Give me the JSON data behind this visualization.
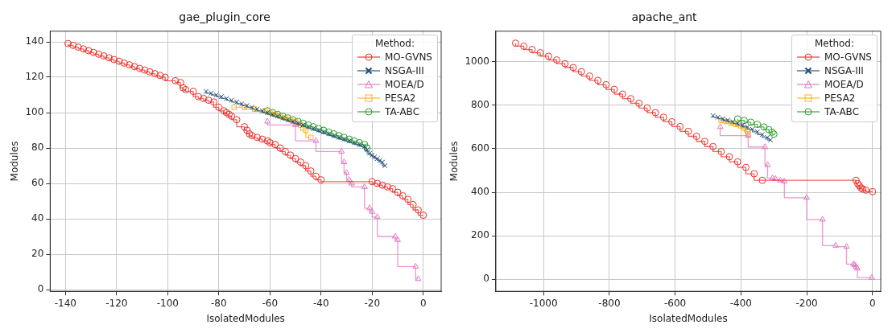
{
  "chart_data": [
    {
      "type": "step",
      "title": "gae_plugin_core",
      "xlabel": "IsolatedModules",
      "ylabel": "Modules",
      "legend_title": "Method:",
      "legend": "top right",
      "grid": true,
      "xlim": [
        -146,
        7
      ],
      "ylim": [
        -1,
        146
      ],
      "xticks": [
        -140,
        -120,
        -100,
        -80,
        -60,
        -40,
        -20,
        0
      ],
      "yticks": [
        0,
        20,
        40,
        60,
        80,
        100,
        120,
        140
      ],
      "series": [
        {
          "name": "MO-GVNS",
          "color": "#e8312a",
          "marker": "circle",
          "x": [
            -139,
            -137,
            -135,
            -133,
            -131,
            -129,
            -127,
            -125,
            -123,
            -121,
            -119,
            -117,
            -115,
            -113,
            -111,
            -109,
            -107,
            -105,
            -103,
            -101,
            -97,
            -95,
            -94,
            -93,
            -90,
            -88,
            -86,
            -84,
            -82,
            -80,
            -78,
            -77,
            -76,
            -75,
            -73,
            -70,
            -69,
            -68,
            -67,
            -65,
            -63,
            -61,
            -60,
            -58,
            -56,
            -54,
            -52,
            -50,
            -48,
            -46,
            -44,
            -42,
            -40,
            -20,
            -18,
            -16,
            -14,
            -12,
            -10,
            -8,
            -6,
            -4,
            -2,
            0
          ],
          "values": [
            139,
            138,
            137,
            136,
            135,
            134,
            133,
            132,
            131,
            130,
            129,
            128,
            127,
            126,
            125,
            124,
            123,
            122,
            121,
            120,
            118,
            117,
            114,
            113,
            112,
            109,
            108,
            107,
            106,
            103,
            101,
            100,
            99,
            98,
            96,
            92,
            90,
            88,
            87,
            86,
            85,
            84,
            83,
            82,
            80,
            78,
            76,
            74,
            72,
            70,
            67,
            64,
            62,
            61,
            60,
            59,
            58,
            57,
            55,
            53,
            51,
            48,
            45,
            42
          ]
        },
        {
          "name": "NSGA-III",
          "color": "#1f4e79",
          "marker": "cross",
          "x": [
            -85,
            -83,
            -81,
            -79,
            -77,
            -75,
            -73,
            -71,
            -69,
            -67,
            -65,
            -63,
            -61,
            -59,
            -57,
            -55,
            -53,
            -51,
            -49,
            -47,
            -45,
            -43,
            -41,
            -39,
            -37,
            -35,
            -33,
            -31,
            -29,
            -27,
            -25,
            -23,
            -22,
            -21,
            -20,
            -19,
            -18,
            -17,
            -16,
            -15
          ],
          "values": [
            112,
            111,
            110,
            109,
            108,
            107,
            106,
            105,
            104,
            103,
            102,
            101,
            100,
            99,
            98,
            97,
            96,
            95,
            94,
            93,
            92,
            91,
            90,
            89,
            88,
            87,
            86,
            85,
            84,
            83,
            82,
            81,
            79,
            77,
            76,
            75,
            74,
            73,
            72,
            70
          ]
        },
        {
          "name": "MOEA/D",
          "color": "#e377c2",
          "marker": "triangle",
          "x": [
            -61,
            -50,
            -42,
            -32,
            -31,
            -30,
            -29,
            -28,
            -23,
            -21,
            -20,
            -18,
            -11,
            -10,
            -3,
            -2
          ],
          "values": [
            95,
            93,
            84,
            78,
            72,
            66,
            62,
            60,
            58,
            46,
            44,
            41,
            30,
            28,
            13,
            6
          ]
        },
        {
          "name": "PESA2",
          "color": "#ffb020",
          "marker": "square",
          "x": [
            -74,
            -70,
            -66,
            -62,
            -60,
            -58,
            -56,
            -54,
            -52,
            -50,
            -48,
            -46,
            -44
          ],
          "values": [
            103,
            103,
            102,
            101,
            100,
            99,
            98,
            97,
            96,
            95,
            93,
            90,
            86
          ]
        },
        {
          "name": "TA-ABC",
          "color": "#2ca02c",
          "marker": "circle",
          "x": [
            -61,
            -59,
            -57,
            -55,
            -53,
            -51,
            -49,
            -47,
            -45,
            -43,
            -41,
            -39,
            -37,
            -35,
            -33,
            -31,
            -29,
            -27,
            -25,
            -23,
            -22
          ],
          "values": [
            101,
            100,
            99,
            98,
            97,
            96,
            95,
            94,
            93,
            92,
            91,
            90,
            89,
            88,
            87,
            86,
            85,
            84,
            83,
            82,
            80
          ]
        }
      ]
    },
    {
      "type": "step",
      "title": "apache_ant",
      "xlabel": "IsolatedModules",
      "ylabel": "Modules",
      "legend_title": "Method:",
      "legend": "top right",
      "grid": true,
      "xlim": [
        -1145,
        25
      ],
      "ylim": [
        -55,
        1140
      ],
      "xticks": [
        -1000,
        -800,
        -600,
        -400,
        -200,
        0
      ],
      "yticks": [
        0,
        200,
        400,
        600,
        800,
        1000
      ],
      "series": [
        {
          "name": "MO-GVNS",
          "color": "#e8312a",
          "marker": "circle",
          "x": [
            -1085,
            -1060,
            -1035,
            -1010,
            -985,
            -960,
            -935,
            -910,
            -885,
            -860,
            -835,
            -810,
            -785,
            -760,
            -735,
            -710,
            -685,
            -660,
            -635,
            -610,
            -585,
            -560,
            -535,
            -510,
            -485,
            -460,
            -435,
            -410,
            -385,
            -360,
            -335,
            -50,
            -45,
            -40,
            -35,
            -30,
            -20,
            0
          ],
          "values": [
            1085,
            1071,
            1056,
            1041,
            1025,
            1008,
            991,
            973,
            954,
            934,
            914,
            894,
            873,
            851,
            830,
            809,
            787,
            766,
            745,
            724,
            702,
            680,
            657,
            634,
            610,
            587,
            563,
            540,
            514,
            485,
            455,
            455,
            440,
            430,
            420,
            415,
            410,
            403
          ]
        },
        {
          "name": "NSGA-III",
          "color": "#1f4e79",
          "marker": "cross",
          "x": [
            -485,
            -470,
            -455,
            -440,
            -425,
            -410,
            -395,
            -380,
            -365,
            -350,
            -335,
            -320,
            -310
          ],
          "values": [
            752,
            745,
            738,
            731,
            724,
            717,
            709,
            700,
            690,
            678,
            665,
            652,
            640
          ]
        },
        {
          "name": "MOEA/D",
          "color": "#e377c2",
          "marker": "triangle",
          "x": [
            -463,
            -378,
            -327,
            -319,
            -304,
            -295,
            -280,
            -268,
            -200,
            -152,
            -112,
            -79,
            -58,
            -54,
            -50,
            -46,
            -2
          ],
          "values": [
            700,
            660,
            608,
            525,
            465,
            462,
            455,
            450,
            375,
            275,
            155,
            150,
            70,
            65,
            58,
            50,
            8
          ]
        },
        {
          "name": "PESA2",
          "color": "#ffb020",
          "marker": "square",
          "x": [
            -460,
            -445,
            -430,
            -415,
            -400,
            -390,
            -380,
            -378
          ],
          "values": [
            730,
            725,
            718,
            712,
            705,
            695,
            680,
            668
          ]
        },
        {
          "name": "TA-ABC",
          "color": "#2ca02c",
          "marker": "circle",
          "x": [
            -410,
            -390,
            -370,
            -350,
            -330,
            -315,
            -305,
            -300
          ],
          "values": [
            737,
            730,
            722,
            712,
            700,
            688,
            676,
            667
          ]
        }
      ]
    }
  ]
}
